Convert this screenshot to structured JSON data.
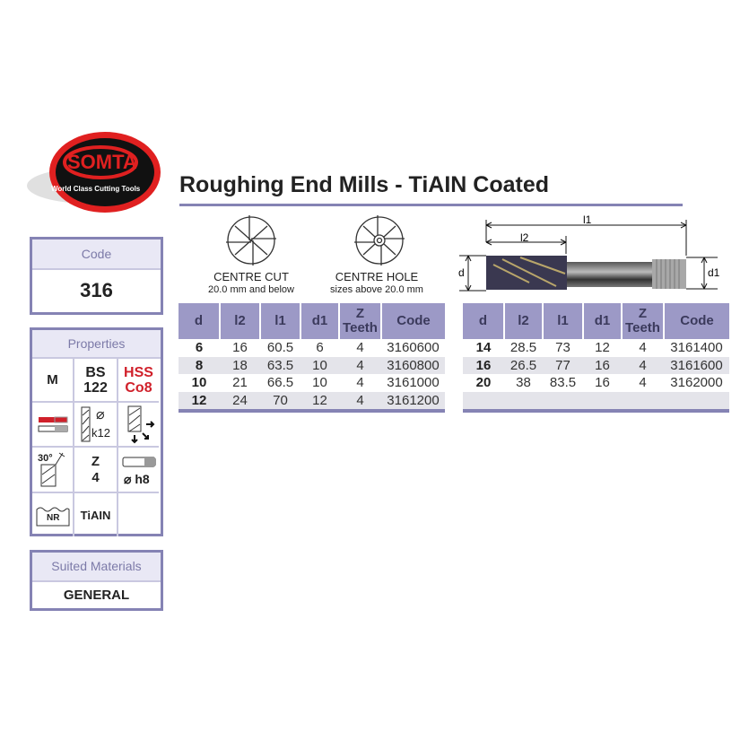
{
  "logo": {
    "brand": "SOMTA",
    "tagline": "World Class Cutting Tools"
  },
  "title": "Roughing End Mills - TiAIN Coated",
  "code_box": {
    "label": "Code",
    "value": "316"
  },
  "properties": {
    "label": "Properties",
    "standard": "M",
    "bs_line1": "BS",
    "bs_line2": "122",
    "material_line1": "HSS",
    "material_line2": "Co8",
    "tolerance": "k12",
    "helix_angle": "30°",
    "teeth_label": "Z",
    "teeth_value": "4",
    "shank_tolerance": "⌀ h8",
    "profile": "NR",
    "coating": "TiAIN",
    "colors": {
      "accent": "#8583b4",
      "red": "#d0202a"
    }
  },
  "suited_materials": {
    "label": "Suited Materials",
    "value": "GENERAL"
  },
  "centre_cut": {
    "title": "CENTRE CUT",
    "subtitle": "20.0 mm and below"
  },
  "centre_hole": {
    "title": "CENTRE HOLE",
    "subtitle": "sizes above 20.0 mm"
  },
  "drawing": {
    "l1": "l1",
    "l2": "l2",
    "d": "d",
    "d1": "d1"
  },
  "columns": [
    "d",
    "l2",
    "l1",
    "d1",
    "Z",
    "Teeth",
    "Code"
  ],
  "table_left": [
    [
      "6",
      "16",
      "60.5",
      "6",
      "4",
      "3160600"
    ],
    [
      "8",
      "18",
      "63.5",
      "10",
      "4",
      "3160800"
    ],
    [
      "10",
      "21",
      "66.5",
      "10",
      "4",
      "3161000"
    ],
    [
      "12",
      "24",
      "70",
      "12",
      "4",
      "3161200"
    ]
  ],
  "table_right": [
    [
      "14",
      "28.5",
      "73",
      "12",
      "4",
      "3161400"
    ],
    [
      "16",
      "26.5",
      "77",
      "16",
      "4",
      "3161600"
    ],
    [
      "20",
      "38",
      "83.5",
      "16",
      "4",
      "3162000"
    ]
  ]
}
